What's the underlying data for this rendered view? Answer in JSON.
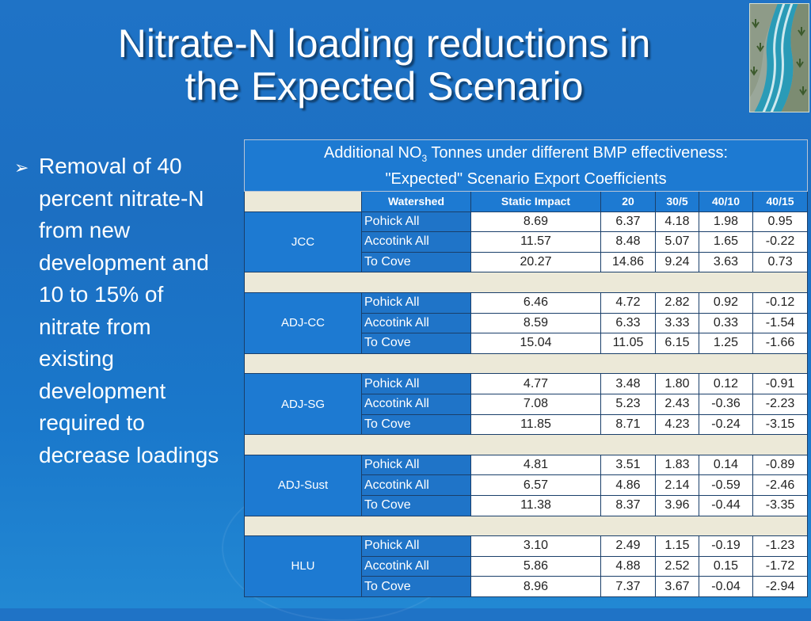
{
  "title": {
    "line1": "Nitrate-N loading reductions in",
    "line2": "the Expected Scenario"
  },
  "logo_icon": "stream-landscape-icon",
  "bullet": {
    "marker": "➢",
    "text": "Removal of 40 percent nitrate-N from new development and 10 to 15% of nitrate from existing development required to decrease loadings"
  },
  "table": {
    "caption_pre": "Additional NO",
    "caption_sub": "3",
    "caption_post": " Tonnes under different BMP effectiveness:",
    "caption_line2": "\"Expected\" Scenario Export Coefficients",
    "headers": [
      "Watershed",
      "Static Impact",
      "20",
      "30/5",
      "40/10",
      "40/15"
    ],
    "groups": [
      {
        "name": "JCC",
        "rows": [
          {
            "watershed": "Pohick All",
            "values": [
              "8.69",
              "6.37",
              "4.18",
              "1.98",
              "0.95"
            ]
          },
          {
            "watershed": "Accotink All",
            "values": [
              "11.57",
              "8.48",
              "5.07",
              "1.65",
              "-0.22"
            ]
          },
          {
            "watershed": "To Cove",
            "values": [
              "20.27",
              "14.86",
              "9.24",
              "3.63",
              "0.73"
            ]
          }
        ]
      },
      {
        "name": "ADJ-CC",
        "rows": [
          {
            "watershed": "Pohick All",
            "values": [
              "6.46",
              "4.72",
              "2.82",
              "0.92",
              "-0.12"
            ]
          },
          {
            "watershed": "Accotink All",
            "values": [
              "8.59",
              "6.33",
              "3.33",
              "0.33",
              "-1.54"
            ]
          },
          {
            "watershed": "To Cove",
            "values": [
              "15.04",
              "11.05",
              "6.15",
              "1.25",
              "-1.66"
            ]
          }
        ]
      },
      {
        "name": "ADJ-SG",
        "rows": [
          {
            "watershed": "Pohick All",
            "values": [
              "4.77",
              "3.48",
              "1.80",
              "0.12",
              "-0.91"
            ]
          },
          {
            "watershed": "Accotink All",
            "values": [
              "7.08",
              "5.23",
              "2.43",
              "-0.36",
              "-2.23"
            ]
          },
          {
            "watershed": "To Cove",
            "values": [
              "11.85",
              "8.71",
              "4.23",
              "-0.24",
              "-3.15"
            ]
          }
        ]
      },
      {
        "name": "ADJ-Sust",
        "rows": [
          {
            "watershed": "Pohick All",
            "values": [
              "4.81",
              "3.51",
              "1.83",
              "0.14",
              "-0.89"
            ]
          },
          {
            "watershed": "Accotink All",
            "values": [
              "6.57",
              "4.86",
              "2.14",
              "-0.59",
              "-2.46"
            ]
          },
          {
            "watershed": "To Cove",
            "values": [
              "11.38",
              "8.37",
              "3.96",
              "-0.44",
              "-3.35"
            ]
          }
        ]
      },
      {
        "name": "HLU",
        "rows": [
          {
            "watershed": "Pohick All",
            "values": [
              "3.10",
              "2.49",
              "1.15",
              "-0.19",
              "-1.23"
            ]
          },
          {
            "watershed": "Accotink All",
            "values": [
              "5.86",
              "4.88",
              "2.52",
              "0.15",
              "-1.72"
            ]
          },
          {
            "watershed": "To Cove",
            "values": [
              "8.96",
              "7.37",
              "3.67",
              "-0.04",
              "-2.94"
            ]
          }
        ]
      }
    ]
  },
  "colors": {
    "background": "#1f73c6",
    "cell_blue": "#1d7ad2",
    "cell_white": "#ffffff",
    "spacer": "#ece9d8"
  }
}
